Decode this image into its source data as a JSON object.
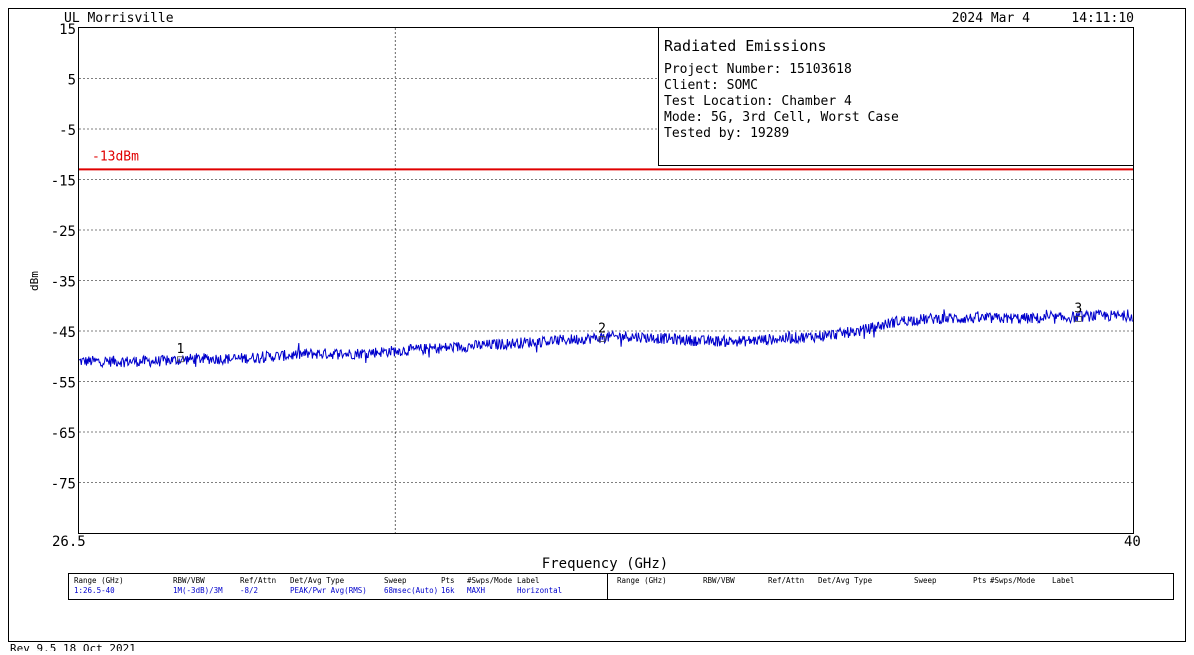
{
  "header": {
    "site": "UL Morrisville",
    "date": "2024 Mar 4",
    "time": "14:11:10"
  },
  "info_box": {
    "title": "Radiated Emissions",
    "lines": [
      "Project Number: 15103618",
      "Client: SOMC",
      "Test Location: Chamber 4",
      "Mode: 5G, 3rd Cell, Worst Case",
      "Tested by: 19289"
    ]
  },
  "limit": {
    "label": "-13dBm",
    "value": -13,
    "color": "#e00000"
  },
  "footer": {
    "revision": "Rev 9.5 18 Oct 2021"
  },
  "settings_table": {
    "headers": [
      "Range (GHz)",
      "RBW/VBW",
      "Ref/Attn",
      "Det/Avg Type",
      "Sweep",
      "Pts",
      "#Swps/Mode",
      "Label"
    ],
    "row": [
      "1:26.5-40",
      "1M(-3dB)/3M",
      "-8/2",
      "PEAK/Pwr Avg(RMS)",
      "68msec(Auto)",
      "16k",
      "MAXH",
      "Horizontal"
    ]
  },
  "chart_data": {
    "type": "line",
    "xlabel": "Frequency (GHz)",
    "ylabel": "dBm",
    "xlim": [
      26.5,
      40
    ],
    "ylim": [
      -85,
      15
    ],
    "x_tick_labels": [
      "26.5",
      "40"
    ],
    "y_ticks": [
      15,
      5,
      -5,
      -15,
      -25,
      -35,
      -45,
      -55,
      -65,
      -75
    ],
    "grid": true,
    "series": [
      {
        "color": "#0000cc",
        "x": [
          26.5,
          27.0,
          27.5,
          28.0,
          28.5,
          29.0,
          29.5,
          30.0,
          30.5,
          31.0,
          31.5,
          32.0,
          32.5,
          33.0,
          33.5,
          34.0,
          34.5,
          35.0,
          35.5,
          36.0,
          36.5,
          37.0,
          37.5,
          38.0,
          38.5,
          39.0,
          39.5,
          40.0
        ],
        "y": [
          -51,
          -51,
          -51,
          -50.5,
          -50.5,
          -50,
          -49.5,
          -49.5,
          -49,
          -48.5,
          -48,
          -47.5,
          -47,
          -46.5,
          -46,
          -46.5,
          -47,
          -47,
          -46.5,
          -46,
          -45,
          -43,
          -42.5,
          -42.5,
          -42.5,
          -42.5,
          -42,
          -42
        ]
      }
    ],
    "markers": [
      {
        "label": "1",
        "x": 27.8,
        "y": -50.5
      },
      {
        "label": "2",
        "x": 33.2,
        "y": -46.5
      },
      {
        "label": "3",
        "x": 39.3,
        "y": -42.5
      }
    ]
  }
}
